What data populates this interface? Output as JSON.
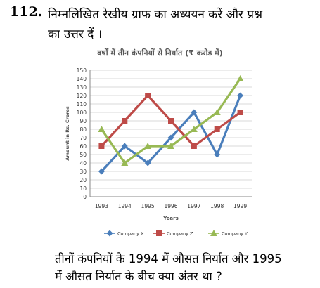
{
  "question": {
    "number": "112.",
    "line1": "निम्नलिखित रेखीय ग्राफ का अध्ययन करें और प्रश्न",
    "line2": "का उत्तर दें ।",
    "sub1": "तीनों कंपनियों के 1994 में औसत निर्यात और 1995",
    "sub2": "में औसत निर्यात के बीच क्या अंतर था ?"
  },
  "chart_data": {
    "type": "line",
    "title": "वर्षों में तीन कंपनियों से निर्यात (₹ करोड में)",
    "xlabel": "Years",
    "ylabel": "Amount in Rs. Crores",
    "categories": [
      "1993",
      "1994",
      "1995",
      "1996",
      "1997",
      "1998",
      "1999"
    ],
    "ylim": [
      0,
      150
    ],
    "yticks": [
      0,
      10,
      20,
      30,
      40,
      50,
      60,
      70,
      80,
      90,
      100,
      110,
      120,
      130,
      140,
      150
    ],
    "grid": true,
    "legend": "bottom",
    "series": [
      {
        "name": "Company X",
        "color": "#4a7ebb",
        "marker": "diamond",
        "values": [
          30,
          60,
          40,
          70,
          100,
          50,
          120
        ]
      },
      {
        "name": "Company Z",
        "color": "#be4b48",
        "marker": "square",
        "values": [
          60,
          90,
          120,
          90,
          60,
          80,
          100
        ]
      },
      {
        "name": "Company Y",
        "color": "#98b954",
        "marker": "triangle",
        "values": [
          80,
          40,
          60,
          60,
          80,
          100,
          140
        ]
      }
    ]
  }
}
